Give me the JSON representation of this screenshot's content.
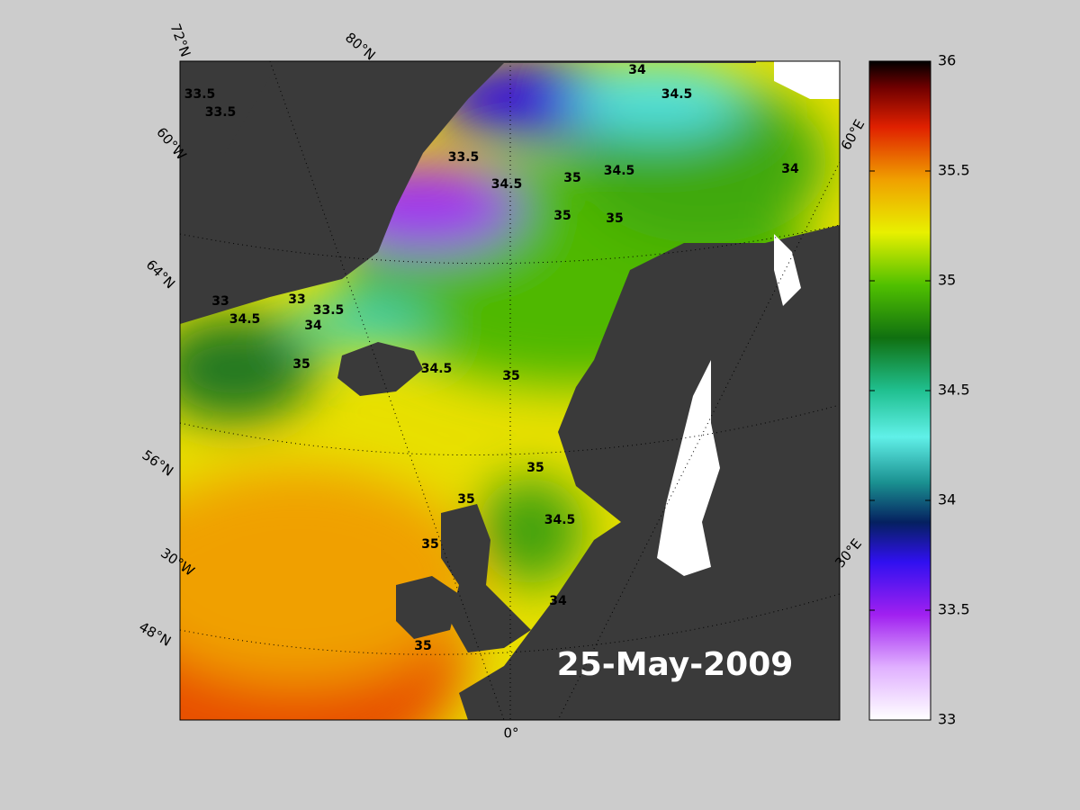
{
  "map": {
    "date_label": "25-May-2009",
    "graticule_labels": [
      "72°N",
      "80°N",
      "60°W",
      "64°N",
      "56°N",
      "30°W",
      "48°N",
      "0°",
      "30°E",
      "60°E"
    ],
    "contour_labels": [
      "33.5",
      "33.5",
      "33.5",
      "34",
      "34.5",
      "35",
      "34.5",
      "34.5",
      "35",
      "35",
      "34",
      "33",
      "33",
      "34.5",
      "33.5",
      "34",
      "35",
      "34.5",
      "35",
      "35",
      "35",
      "34.5",
      "35",
      "34",
      "35"
    ]
  },
  "colorbar": {
    "range": [
      33,
      36
    ],
    "ticks": [
      33,
      33.5,
      34,
      34.5,
      35,
      35.5,
      36
    ]
  }
}
